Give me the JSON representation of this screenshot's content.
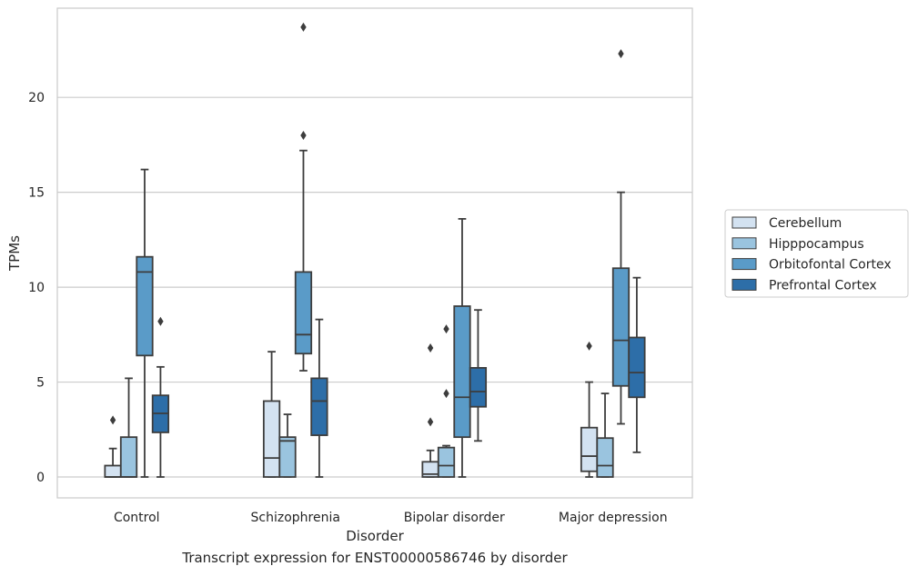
{
  "caption": "Transcript expression for ENST00000586746 by disorder",
  "chart_data": {
    "type": "box",
    "title": "",
    "xlabel": "Disorder",
    "ylabel": "TPMs",
    "ylim": [
      -1.1,
      24.7
    ],
    "yticks": [
      0,
      5,
      10,
      15,
      20
    ],
    "grid": "horizontal",
    "legend_position": "right",
    "categories": [
      "Control",
      "Schizophrenia",
      "Bipolar disorder",
      "Major depression"
    ],
    "series": [
      {
        "name": "Cerebellum",
        "color": "#d3e2f1",
        "boxes": [
          {
            "whisker_low": 0,
            "q1": 0,
            "median": 0,
            "q3": 0.6,
            "whisker_high": 1.5,
            "outliers": [
              3.0
            ]
          },
          {
            "whisker_low": 0,
            "q1": 0,
            "median": 1.0,
            "q3": 4.0,
            "whisker_high": 6.6,
            "outliers": []
          },
          {
            "whisker_low": 0,
            "q1": 0,
            "median": 0.15,
            "q3": 0.8,
            "whisker_high": 1.4,
            "outliers": [
              6.8,
              2.9
            ]
          },
          {
            "whisker_low": 0,
            "q1": 0.3,
            "median": 1.1,
            "q3": 2.6,
            "whisker_high": 5.0,
            "outliers": [
              6.9
            ]
          }
        ]
      },
      {
        "name": "Hipppocampus",
        "color": "#9ac4df",
        "boxes": [
          {
            "whisker_low": 0,
            "q1": 0,
            "median": 0,
            "q3": 2.1,
            "whisker_high": 5.2,
            "outliers": []
          },
          {
            "whisker_low": 0,
            "q1": 0,
            "median": 1.9,
            "q3": 2.1,
            "whisker_high": 3.3,
            "outliers": []
          },
          {
            "whisker_low": 0,
            "q1": 0,
            "median": 0.6,
            "q3": 1.55,
            "whisker_high": 1.65,
            "outliers": [
              7.8,
              4.4
            ]
          },
          {
            "whisker_low": 0,
            "q1": 0,
            "median": 0.6,
            "q3": 2.05,
            "whisker_high": 4.4,
            "outliers": []
          }
        ]
      },
      {
        "name": "Orbitofontal Cortex",
        "color": "#5a9bc8",
        "boxes": [
          {
            "whisker_low": 0,
            "q1": 6.4,
            "median": 10.8,
            "q3": 11.6,
            "whisker_high": 16.2,
            "outliers": []
          },
          {
            "whisker_low": 5.6,
            "q1": 6.5,
            "median": 7.5,
            "q3": 10.8,
            "whisker_high": 17.2,
            "outliers": [
              23.7,
              18.0
            ]
          },
          {
            "whisker_low": 0,
            "q1": 2.1,
            "median": 4.2,
            "q3": 9.0,
            "whisker_high": 13.6,
            "outliers": []
          },
          {
            "whisker_low": 2.8,
            "q1": 4.8,
            "median": 7.2,
            "q3": 11.0,
            "whisker_high": 15.0,
            "outliers": [
              22.3
            ]
          }
        ]
      },
      {
        "name": "Prefrontal Cortex",
        "color": "#2d6ea8",
        "boxes": [
          {
            "whisker_low": 0,
            "q1": 2.35,
            "median": 3.35,
            "q3": 4.3,
            "whisker_high": 5.8,
            "outliers": [
              8.2
            ]
          },
          {
            "whisker_low": 0,
            "q1": 2.2,
            "median": 4.0,
            "q3": 5.2,
            "whisker_high": 8.3,
            "outliers": []
          },
          {
            "whisker_low": 1.9,
            "q1": 3.7,
            "median": 4.5,
            "q3": 5.75,
            "whisker_high": 8.8,
            "outliers": []
          },
          {
            "whisker_low": 1.3,
            "q1": 4.2,
            "median": 5.5,
            "q3": 7.35,
            "whisker_high": 10.5,
            "outliers": []
          }
        ]
      }
    ]
  }
}
